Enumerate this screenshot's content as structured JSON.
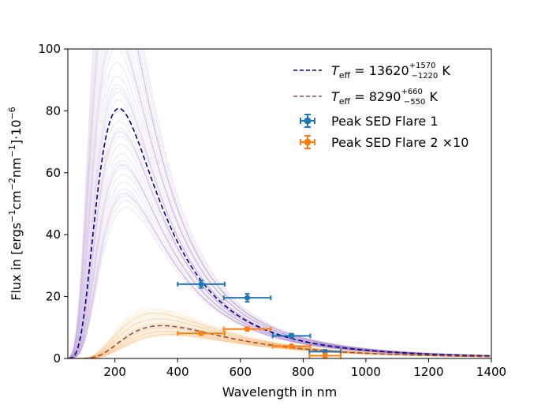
{
  "chart_data": {
    "type": "line",
    "title": "",
    "xlabel": "Wavelength in nm",
    "ylabel_parts": {
      "prefix": "Flux in [ergs",
      "s_exp": "−1",
      "cm": "cm",
      "cm_exp": "−2",
      "nm": "nm",
      "nm_exp": "−1",
      "suffix": "]·10",
      "scale_exp": "−6"
    },
    "xlim": [
      50,
      1400
    ],
    "ylim": [
      0,
      100
    ],
    "xticks": [
      200,
      400,
      600,
      800,
      1000,
      1200,
      1400
    ],
    "yticks": [
      0,
      20,
      40,
      60,
      80,
      100
    ],
    "grid": false,
    "legend_position": "top-right",
    "colors": {
      "flare1": "#1f77b4",
      "flare2": "#ff7f0e",
      "fit1": "#00008b",
      "fit2": "#8c564b",
      "samples1": "#9467bd",
      "samples2": "#ffa64d"
    },
    "series": [
      {
        "name": "Teff = 13620 +1570/−1220 K",
        "kind": "blackbody-fit",
        "teff_K": 13620,
        "teff_err_plus": 1570,
        "teff_err_minus": 1220,
        "peak_flux": 80.8,
        "color_key": "fit1",
        "style": "dashed",
        "legend": {
          "T": "T",
          "sub": "eff",
          "main": " = 13620",
          "sup": "+1570",
          "sub2": "−1220",
          "unit": " K"
        }
      },
      {
        "name": "Teff = 8290 +660/−550 K",
        "kind": "blackbody-fit",
        "teff_K": 8290,
        "teff_err_plus": 660,
        "teff_err_minus": 550,
        "peak_flux": 10.6,
        "color_key": "fit2",
        "style": "dashed",
        "legend": {
          "T": "T",
          "sub": "eff",
          "main": " = 8290",
          "sup": "+660",
          "sub2": "−550",
          "unit": " K"
        }
      },
      {
        "name": "Peak SED Flare 1",
        "kind": "errorbar",
        "color_key": "flare1",
        "points": [
          {
            "x": 475,
            "y": 24.0,
            "xerr": 75,
            "yerr": 1.2
          },
          {
            "x": 622,
            "y": 19.6,
            "xerr": 75,
            "yerr": 1.3
          },
          {
            "x": 763,
            "y": 7.3,
            "xerr": 60,
            "yerr": 0.7
          },
          {
            "x": 870,
            "y": 2.2,
            "xerr": 50,
            "yerr": 0.5
          }
        ]
      },
      {
        "name": "Peak SED Flare 2 ×10",
        "kind": "errorbar",
        "color_key": "flare2",
        "points": [
          {
            "x": 475,
            "y": 8.1,
            "xerr": 75,
            "yerr": 0.5
          },
          {
            "x": 622,
            "y": 9.5,
            "xerr": 75,
            "yerr": 0.6
          },
          {
            "x": 763,
            "y": 4.0,
            "xerr": 60,
            "yerr": 0.4
          },
          {
            "x": 870,
            "y": 0.9,
            "xerr": 50,
            "yerr": 0.7
          }
        ]
      }
    ]
  }
}
